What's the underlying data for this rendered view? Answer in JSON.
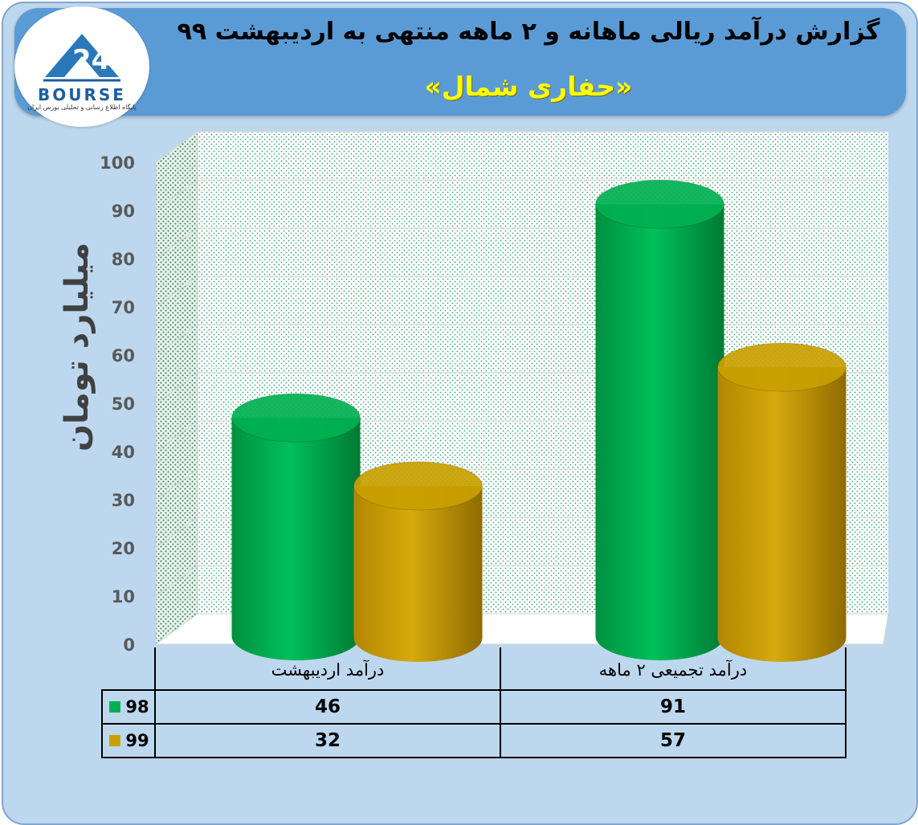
{
  "header": {
    "title": "گزارش درآمد ریالی ماهانه و ۲ ماهه منتهی به اردیبهشت ۹۹",
    "subtitle": "«حفاری شمال»"
  },
  "logo": {
    "word": "BOURSE",
    "tagline": "پایگاه اطلاع رسانی و تحلیلی بورس ایران"
  },
  "colors": {
    "series_98": "#00b050",
    "series_99": "#c9a000"
  },
  "chart_data": {
    "type": "bar",
    "style": "3d-cylinder",
    "title": "گزارش درآمد ریالی ماهانه و ۲ ماهه منتهی به اردیبهشت ۹۹",
    "subtitle": "«حفاری شمال»",
    "ylabel": "میلیارد تومان",
    "xlabel": "",
    "ylim": [
      0,
      100
    ],
    "yticks": [
      0,
      10,
      20,
      30,
      40,
      50,
      60,
      70,
      80,
      90,
      100
    ],
    "grid": true,
    "legend": "data-table",
    "categories": [
      "درآمد اردیبهشت",
      "درآمد تجمیعی ۲ ماهه"
    ],
    "series": [
      {
        "name": "98",
        "values": [
          46,
          91
        ],
        "color": "#00b050"
      },
      {
        "name": "99",
        "values": [
          32,
          57
        ],
        "color": "#c9a000"
      }
    ]
  }
}
